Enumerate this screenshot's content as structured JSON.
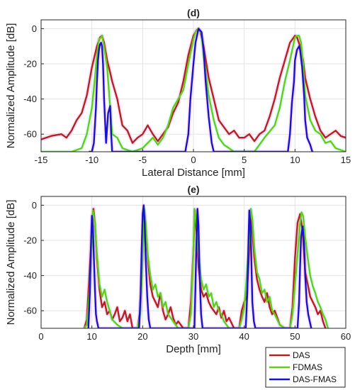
{
  "colors": {
    "DAS": "#b22222",
    "FDMAS": "#66cc1a",
    "DAS-FMAS": "#1414cc"
  },
  "legend": {
    "entries": [
      "DAS",
      "FDMAS",
      "DAS-FMAS"
    ],
    "placement": "bottom-right"
  },
  "chart_data": [
    {
      "type": "line",
      "title": "(d)",
      "xlabel": "Lateral Distance [mm]",
      "ylabel": "Normalized Amplitude [dB]",
      "xlim": [
        -15,
        15
      ],
      "ylim": [
        -70,
        5
      ],
      "xticks": [
        -15,
        -10,
        -5,
        0,
        5,
        10,
        15
      ],
      "yticks": [
        0,
        -20,
        -40,
        -60
      ],
      "grid": true,
      "series": [
        {
          "name": "DAS",
          "x": [
            -15,
            -14,
            -13,
            -12.5,
            -12,
            -11.5,
            -11,
            -10.5,
            -10,
            -9.5,
            -9.2,
            -9,
            -8.8,
            -8.5,
            -8.2,
            -8,
            -7.5,
            -7,
            -6.5,
            -6,
            -5.5,
            -5,
            -4.5,
            -4,
            -3.5,
            -3,
            -2.5,
            -2,
            -1.5,
            -1,
            -0.5,
            0,
            0.3,
            0.5,
            0.7,
            1,
            1.5,
            2,
            2.5,
            3,
            3.5,
            4,
            4.5,
            5,
            5.5,
            6,
            6.5,
            7,
            7.5,
            8,
            8.5,
            9,
            9.5,
            10,
            10.2,
            10.5,
            10.8,
            11,
            11.5,
            12,
            12.5,
            13,
            13.5,
            14,
            14.5,
            15
          ],
          "y": [
            -63,
            -61,
            -60,
            -62,
            -58,
            -52,
            -48,
            -38,
            -22,
            -10,
            -5,
            -4,
            -8,
            -18,
            -25,
            -30,
            -40,
            -55,
            -58,
            -65,
            -62,
            -60,
            -55,
            -60,
            -64,
            -60,
            -56,
            -48,
            -42,
            -30,
            -15,
            -4,
            -1,
            0,
            -2,
            -10,
            -28,
            -40,
            -52,
            -56,
            -60,
            -58,
            -62,
            -62,
            -60,
            -64,
            -60,
            -58,
            -50,
            -40,
            -28,
            -18,
            -8,
            -4,
            -5,
            -10,
            -18,
            -28,
            -40,
            -50,
            -58,
            -62,
            -60,
            -58,
            -61,
            -62
          ]
        },
        {
          "name": "FDMAS",
          "x": [
            -15,
            -12,
            -11,
            -10.5,
            -10,
            -9.7,
            -9.5,
            -9.3,
            -9.1,
            -9,
            -8.8,
            -8.5,
            -8.2,
            -8,
            -7.5,
            -7,
            -6,
            -5,
            -4,
            -3.5,
            -3,
            -2.5,
            -2,
            -1.5,
            -1,
            -0.5,
            0,
            0.2,
            0.5,
            0.8,
            1,
            1.5,
            2,
            2.5,
            3,
            3.5,
            4,
            6,
            7,
            8,
            8.5,
            9,
            9.5,
            9.8,
            10,
            10.2,
            10.4,
            10.6,
            10.8,
            11,
            11.5,
            12,
            12.5,
            13,
            13.5,
            14,
            15
          ],
          "y": [
            -70,
            -70,
            -68,
            -60,
            -45,
            -28,
            -15,
            -6,
            -5,
            -4,
            -10,
            -22,
            -45,
            -60,
            -62,
            -68,
            -70,
            -68,
            -62,
            -66,
            -62,
            -55,
            -45,
            -40,
            -35,
            -20,
            -6,
            -2,
            0,
            -3,
            -15,
            -38,
            -52,
            -62,
            -66,
            -68,
            -70,
            -70,
            -62,
            -55,
            -45,
            -30,
            -18,
            -10,
            -5,
            -4,
            -4,
            -8,
            -20,
            -38,
            -52,
            -58,
            -60,
            -65,
            -64,
            -68,
            -70
          ]
        },
        {
          "name": "DAS-FMAS",
          "x": [
            -10.3,
            -10,
            -9.8,
            -9.6,
            -9.5,
            -9.4,
            -9.3,
            -9.2,
            -9.1,
            -9,
            -8.9,
            -8.8,
            -8.6,
            -8.4,
            -8.2,
            -8.1,
            -8,
            -0.8,
            -0.5,
            -0.3,
            0,
            0.2,
            0.5,
            0.8,
            1,
            1.2,
            1.5,
            1.8,
            2,
            9.3,
            9.5,
            9.7,
            9.9,
            10,
            10.2,
            10.4,
            10.5,
            10.7,
            10.9,
            11,
            11.2,
            11.5,
            11.7,
            11.8
          ],
          "y": [
            -70,
            -70,
            -65,
            -45,
            -30,
            -18,
            -12,
            -9,
            -8,
            -10,
            -20,
            -40,
            -65,
            -48,
            -44,
            -60,
            -70,
            -70,
            -60,
            -40,
            -20,
            -8,
            0,
            -2,
            -12,
            -30,
            -50,
            -65,
            -70,
            -70,
            -60,
            -42,
            -30,
            -18,
            -12,
            -10,
            -12,
            -22,
            -38,
            -52,
            -62,
            -66,
            -70,
            -70
          ]
        }
      ]
    },
    {
      "type": "line",
      "title": "(e)",
      "xlabel": "Depth [mm]",
      "ylabel": "Normalized Amplitude [dB]",
      "xlim": [
        0,
        60
      ],
      "ylim": [
        -70,
        5
      ],
      "xticks": [
        0,
        10,
        20,
        30,
        40,
        50,
        60
      ],
      "yticks": [
        0,
        -20,
        -40,
        -60
      ],
      "grid": true,
      "series": [
        {
          "name": "DAS",
          "x": [
            8.5,
            9,
            9.5,
            10,
            10.3,
            10.6,
            11,
            11.5,
            12,
            12.5,
            13,
            13.5,
            14,
            14.5,
            15,
            15.5,
            16,
            16.5,
            17,
            17.5,
            18,
            19,
            19.5,
            20,
            20.3,
            20.6,
            21,
            21.5,
            22,
            22.5,
            23,
            23.5,
            24,
            24.5,
            25,
            25.5,
            26,
            26.5,
            27,
            28,
            29,
            29.5,
            30,
            30.3,
            30.6,
            31,
            31.5,
            32,
            32.5,
            33,
            33.5,
            34,
            34.5,
            35,
            35.5,
            36,
            36.5,
            37,
            38,
            39,
            39.5,
            40,
            40.5,
            41,
            41.3,
            41.6,
            42,
            42.5,
            43,
            43.5,
            44,
            44.5,
            45,
            45.5,
            46,
            46.5,
            47,
            48,
            49,
            49.5,
            50,
            50.5,
            51,
            51.5,
            51.8,
            52,
            52.5,
            53,
            53.5,
            54,
            54.5,
            55,
            55.5,
            56
          ],
          "y": [
            -70,
            -65,
            -40,
            -15,
            -2,
            -10,
            -30,
            -48,
            -58,
            -55,
            -62,
            -60,
            -65,
            -62,
            -58,
            -66,
            -64,
            -60,
            -66,
            -62,
            -70,
            -70,
            -60,
            -28,
            -3,
            -12,
            -30,
            -45,
            -52,
            -55,
            -58,
            -50,
            -60,
            -65,
            -62,
            -58,
            -64,
            -68,
            -66,
            -70,
            -70,
            -55,
            -25,
            -3,
            -15,
            -35,
            -48,
            -52,
            -50,
            -55,
            -58,
            -60,
            -62,
            -58,
            -64,
            -60,
            -66,
            -64,
            -70,
            -70,
            -60,
            -55,
            -52,
            -25,
            -3,
            -15,
            -30,
            -42,
            -48,
            -52,
            -55,
            -50,
            -58,
            -62,
            -60,
            -64,
            -68,
            -70,
            -70,
            -58,
            -30,
            -10,
            -5,
            -15,
            -28,
            -38,
            -45,
            -52,
            -55,
            -58,
            -62,
            -60,
            -66,
            -70
          ]
        },
        {
          "name": "FDMAS",
          "x": [
            8.5,
            9,
            9.5,
            10,
            10.2,
            10.5,
            11,
            11.5,
            12,
            12.5,
            13,
            13.5,
            14,
            15,
            16,
            17,
            18,
            19,
            19.5,
            20,
            20.3,
            20.6,
            21,
            21.5,
            22,
            22.5,
            23,
            23.5,
            24,
            24.5,
            25,
            26,
            27,
            28,
            29,
            29.5,
            30,
            30.2,
            30.5,
            31,
            31.5,
            32,
            32.5,
            33,
            33.5,
            34,
            34.5,
            35,
            35.5,
            36,
            37,
            38,
            39,
            39.5,
            40,
            40.5,
            41,
            41.3,
            41.6,
            42,
            42.5,
            43,
            43.5,
            44,
            44.5,
            45,
            45.5,
            46,
            47,
            48,
            49,
            49.5,
            50,
            50.5,
            51,
            51.3,
            51.6,
            52,
            52.5,
            53,
            53.5,
            54,
            54.5,
            55,
            55.5,
            56,
            56.5
          ],
          "y": [
            -70,
            -68,
            -50,
            -20,
            -3,
            -8,
            -28,
            -45,
            -52,
            -48,
            -55,
            -60,
            -65,
            -68,
            -70,
            -70,
            -70,
            -70,
            -62,
            -30,
            -2,
            -10,
            -28,
            -40,
            -48,
            -45,
            -52,
            -50,
            -58,
            -55,
            -62,
            -66,
            -70,
            -70,
            -70,
            -62,
            -25,
            -2,
            -8,
            -28,
            -42,
            -48,
            -45,
            -52,
            -50,
            -58,
            -55,
            -60,
            -62,
            -66,
            -70,
            -70,
            -70,
            -65,
            -58,
            -40,
            -20,
            -2,
            -8,
            -25,
            -38,
            -42,
            -50,
            -48,
            -55,
            -52,
            -60,
            -62,
            -68,
            -70,
            -70,
            -62,
            -45,
            -28,
            -10,
            -4,
            -6,
            -18,
            -30,
            -40,
            -46,
            -50,
            -55,
            -58,
            -62,
            -65,
            -70
          ]
        },
        {
          "name": "DAS-FMAS",
          "x": [
            9.3,
            9.6,
            9.8,
            10,
            10.2,
            10.4,
            10.6,
            10.8,
            11,
            11.3,
            19.3,
            19.6,
            19.8,
            20,
            20.2,
            20.4,
            20.6,
            20.9,
            21.2,
            21.5,
            30.2,
            30.4,
            30.6,
            30.8,
            31,
            31.2,
            31.5,
            31.8,
            40.3,
            40.6,
            40.8,
            41,
            41.2,
            41.4,
            41.6,
            41.9,
            42.2,
            50.5,
            50.8,
            51,
            51.2,
            51.5,
            51.8,
            52,
            52.3,
            52.6,
            52.9,
            53.2
          ],
          "y": [
            -70,
            -50,
            -25,
            -6,
            -12,
            -30,
            -48,
            -62,
            -66,
            -70,
            -70,
            -50,
            -25,
            -5,
            0,
            -10,
            -30,
            -52,
            -65,
            -70,
            -70,
            -45,
            -20,
            -2,
            -12,
            -38,
            -62,
            -70,
            -70,
            -50,
            -25,
            -3,
            -10,
            -30,
            -55,
            -66,
            -70,
            -70,
            -55,
            -35,
            -18,
            -12,
            -22,
            -40,
            -55,
            -62,
            -66,
            -70
          ]
        }
      ]
    }
  ]
}
